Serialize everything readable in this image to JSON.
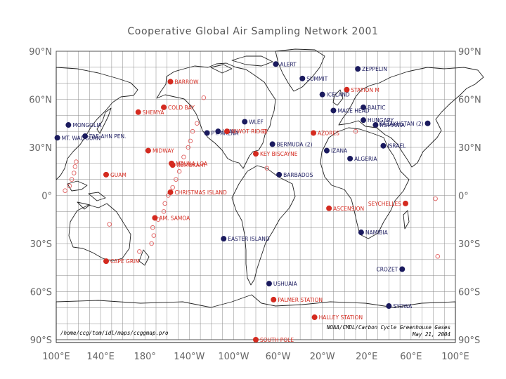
{
  "title": "Cooperative Global Air Sampling Network 2001",
  "colors": {
    "background_sites": "#1a1a5e",
    "other_sites": "#d42a1f",
    "ship_sites": "#e06060"
  },
  "axes": {
    "lat_labels_left": [
      "90°N",
      "60°N",
      "30°N",
      "0°",
      "30°S",
      "60°S",
      "90°S"
    ],
    "lat_labels_right": [
      "90°N",
      "60°N",
      "30°N",
      "0°",
      "30°S",
      "60°S",
      "90°S"
    ],
    "lon_labels": [
      "100°E",
      "140°E",
      "180°",
      "140°W",
      "100°W",
      "60°W",
      "20°W",
      "20°E",
      "60°E",
      "100°E"
    ]
  },
  "footer": {
    "program_path": "/home/ccg/tom/idl/maps/ccggmap.pro",
    "source": "NOAA/CMDL/Carbon Cycle Greenhouse Gases",
    "date": "May 21, 2004"
  },
  "chart_data": {
    "type": "map",
    "projection": "equirectangular, centered 180°",
    "lat_range": [
      -90,
      90
    ],
    "lon_range": [
      "100°E",
      "100°E"
    ],
    "grid": true,
    "sites": [
      {
        "name": "ALERT",
        "lat": 82,
        "lon": -62,
        "color": "navy"
      },
      {
        "name": "ZEPPELIN",
        "lat": 79,
        "lon": 12,
        "color": "navy"
      },
      {
        "name": "SUMMIT",
        "lat": 73,
        "lon": -38,
        "color": "navy"
      },
      {
        "name": "BARROW",
        "lat": 71,
        "lon": -157,
        "color": "red"
      },
      {
        "name": "STATION M",
        "lat": 66,
        "lon": 2,
        "color": "red"
      },
      {
        "name": "ICELAND",
        "lat": 63,
        "lon": -20,
        "color": "navy"
      },
      {
        "name": "BALTIC",
        "lat": 55,
        "lon": 17,
        "color": "navy"
      },
      {
        "name": "MACE HEAD",
        "lat": 53,
        "lon": -10,
        "color": "navy"
      },
      {
        "name": "COLD BAY",
        "lat": 55,
        "lon": -163,
        "color": "red"
      },
      {
        "name": "SHEMYA",
        "lat": 52,
        "lon": 174,
        "color": "red"
      },
      {
        "name": "HUNGARY",
        "lat": 47,
        "lon": 17,
        "color": "navy"
      },
      {
        "name": "KAZAKHSTAN (2)",
        "lat": 45,
        "lon": 75,
        "color": "navy"
      },
      {
        "name": "ROMANIA",
        "lat": 44,
        "lon": 28,
        "color": "navy"
      },
      {
        "name": "MONGOLIA",
        "lat": 44,
        "lon": 111,
        "color": "navy"
      },
      {
        "name": "WLEF",
        "lat": 46,
        "lon": -90,
        "color": "navy"
      },
      {
        "name": "UTAH",
        "lat": 40,
        "lon": -114,
        "color": "navy"
      },
      {
        "name": "PT. ARENA",
        "lat": 39,
        "lon": -124,
        "color": "navy"
      },
      {
        "name": "NIWOT RIDGE",
        "lat": 40,
        "lon": -106,
        "color": "red"
      },
      {
        "name": "AZORES",
        "lat": 39,
        "lon": -28,
        "color": "red"
      },
      {
        "name": "TAE-AHN PEN.",
        "lat": 37,
        "lon": 126,
        "color": "navy"
      },
      {
        "name": "MT. WALIGUAN",
        "lat": 36,
        "lon": 101,
        "color": "navy"
      },
      {
        "name": "BERMUDA (2)",
        "lat": 32,
        "lon": -65,
        "color": "navy"
      },
      {
        "name": "ISRAEL",
        "lat": 31,
        "lon": 35,
        "color": "navy"
      },
      {
        "name": "IZANA",
        "lat": 28,
        "lon": -16,
        "color": "navy"
      },
      {
        "name": "MIDWAY",
        "lat": 28,
        "lon": -177,
        "color": "red"
      },
      {
        "name": "KEY BISCAYNE",
        "lat": 26,
        "lon": -80,
        "color": "red"
      },
      {
        "name": "ALGERIA",
        "lat": 23,
        "lon": 5,
        "color": "navy"
      },
      {
        "name": "MAUNA LOA",
        "lat": 20,
        "lon": -156,
        "color": "red"
      },
      {
        "name": "KUMUKAHI",
        "lat": 19,
        "lon": -155,
        "color": "red"
      },
      {
        "name": "GUAM",
        "lat": 13,
        "lon": 145,
        "color": "red"
      },
      {
        "name": "BARBADOS",
        "lat": 13,
        "lon": -59,
        "color": "navy"
      },
      {
        "name": "CHRISTMAS ISLAND",
        "lat": 2,
        "lon": -157,
        "color": "red"
      },
      {
        "name": "SEYCHELLES",
        "lat": -5,
        "lon": 55,
        "color": "red"
      },
      {
        "name": "ASCENSION",
        "lat": -8,
        "lon": -14,
        "color": "red"
      },
      {
        "name": "AM. SAMOA",
        "lat": -14,
        "lon": -171,
        "color": "red"
      },
      {
        "name": "NAMIBIA",
        "lat": -23,
        "lon": 15,
        "color": "navy"
      },
      {
        "name": "EASTER ISLAND",
        "lat": -27,
        "lon": -109,
        "color": "navy"
      },
      {
        "name": "CAPE GRIM",
        "lat": -41,
        "lon": 145,
        "color": "red"
      },
      {
        "name": "CROZET",
        "lat": -46,
        "lon": 52,
        "color": "navy"
      },
      {
        "name": "USHUAIA",
        "lat": -55,
        "lon": -68,
        "color": "navy"
      },
      {
        "name": "PALMER STATION",
        "lat": -65,
        "lon": -64,
        "color": "red"
      },
      {
        "name": "SYOWA",
        "lat": -69,
        "lon": 40,
        "color": "navy"
      },
      {
        "name": "HALLEY STATION",
        "lat": -76,
        "lon": -27,
        "color": "red"
      },
      {
        "name": "SOUTH POLE",
        "lat": -90,
        "lon": -80,
        "color": "red"
      }
    ],
    "ship_points": [
      {
        "lat": 61,
        "lon": -127
      },
      {
        "lat": 45,
        "lon": -133
      },
      {
        "lat": 40,
        "lon": -137
      },
      {
        "lat": 34,
        "lon": -139
      },
      {
        "lat": 30,
        "lon": -141
      },
      {
        "lat": 24,
        "lon": -145
      },
      {
        "lat": 20,
        "lon": -147
      },
      {
        "lat": 15,
        "lon": -149
      },
      {
        "lat": 10,
        "lon": -152
      },
      {
        "lat": 5,
        "lon": -155
      },
      {
        "lat": 0,
        "lon": -159
      },
      {
        "lat": -5,
        "lon": -162
      },
      {
        "lat": -10,
        "lon": -163
      },
      {
        "lat": -15,
        "lon": -168
      },
      {
        "lat": -20,
        "lon": -173
      },
      {
        "lat": -25,
        "lon": -172
      },
      {
        "lat": -30,
        "lon": -174
      },
      {
        "lat": -35,
        "lon": 175
      },
      {
        "lat": 21,
        "lon": 118
      },
      {
        "lat": 18,
        "lon": 117
      },
      {
        "lat": 14,
        "lon": 116
      },
      {
        "lat": 10,
        "lon": 114
      },
      {
        "lat": 6,
        "lon": 112
      },
      {
        "lat": 3,
        "lon": 108
      },
      {
        "lat": 17,
        "lon": -70
      },
      {
        "lat": 40,
        "lon": -72
      },
      {
        "lat": -2,
        "lon": 82
      },
      {
        "lat": -38,
        "lon": 84
      },
      {
        "lat": 40,
        "lon": 10
      },
      {
        "lat": -18,
        "lon": 148
      }
    ]
  }
}
